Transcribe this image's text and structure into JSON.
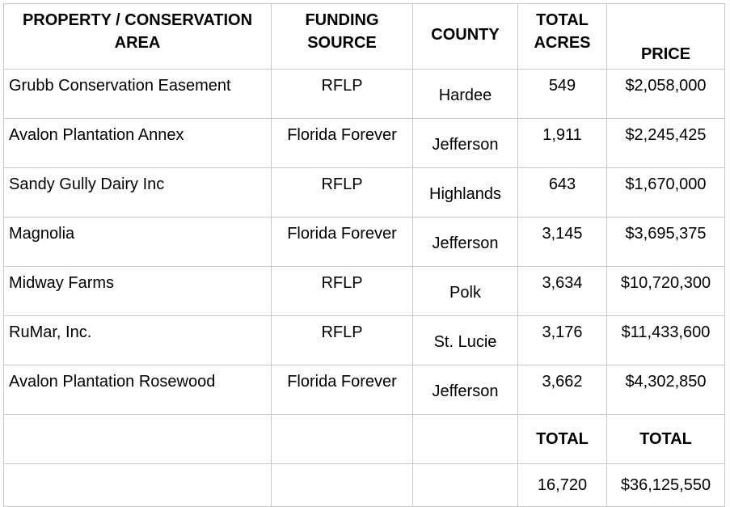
{
  "headers": {
    "property": "PROPERTY / CONSERVATION AREA",
    "funding": "FUNDING SOURCE",
    "county": "COUNTY",
    "acres": "TOTAL ACRES",
    "price": "PRICE"
  },
  "rows": [
    {
      "property": "Grubb Conservation Easement",
      "funding": "RFLP",
      "county": "Hardee",
      "acres": "549",
      "price": "$2,058,000"
    },
    {
      "property": "Avalon Plantation Annex",
      "funding": "Florida Forever",
      "county": "Jefferson",
      "acres": "1,911",
      "price": "$2,245,425"
    },
    {
      "property": "Sandy Gully Dairy Inc",
      "funding": "RFLP",
      "county": "Highlands",
      "acres": "643",
      "price": "$1,670,000"
    },
    {
      "property": "Magnolia",
      "funding": "Florida Forever",
      "county": "Jefferson",
      "acres": "3,145",
      "price": "$3,695,375"
    },
    {
      "property": "Midway Farms",
      "funding": "RFLP",
      "county": "Polk",
      "acres": "3,634",
      "price": "$10,720,300"
    },
    {
      "property": "RuMar, Inc.",
      "funding": "RFLP",
      "county": "St. Lucie",
      "acres": "3,176",
      "price": "$11,433,600"
    },
    {
      "property": "Avalon Plantation Rosewood",
      "funding": "Florida Forever",
      "county": "Jefferson",
      "acres": "3,662",
      "price": "$4,302,850"
    }
  ],
  "totals": {
    "acres_label": "TOTAL",
    "price_label": "TOTAL",
    "acres_value": "16,720",
    "price_value": "$36,125,550"
  }
}
